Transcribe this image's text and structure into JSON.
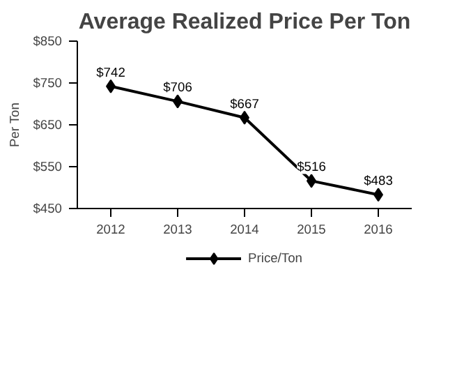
{
  "chart_data": {
    "type": "line",
    "title": "Average Realized Price Per Ton",
    "ylabel": "Per Ton",
    "categories": [
      "2012",
      "2013",
      "2014",
      "2015",
      "2016"
    ],
    "series": [
      {
        "name": "Price/Ton",
        "color": "#000000",
        "values": [
          742,
          706,
          667,
          516,
          483
        ],
        "value_labels": [
          "$742",
          "$706",
          "$667",
          "$516",
          "$483"
        ]
      }
    ],
    "ylim": [
      450,
      850
    ],
    "yticks": [
      {
        "value": 450,
        "label": "$450"
      },
      {
        "value": 550,
        "label": "$550"
      },
      {
        "value": 650,
        "label": "$650"
      },
      {
        "value": 750,
        "label": "$750"
      },
      {
        "value": 850,
        "label": "$850"
      }
    ],
    "grid": false,
    "legend": "bottom",
    "marker": "diamond",
    "line_style": "solid"
  }
}
